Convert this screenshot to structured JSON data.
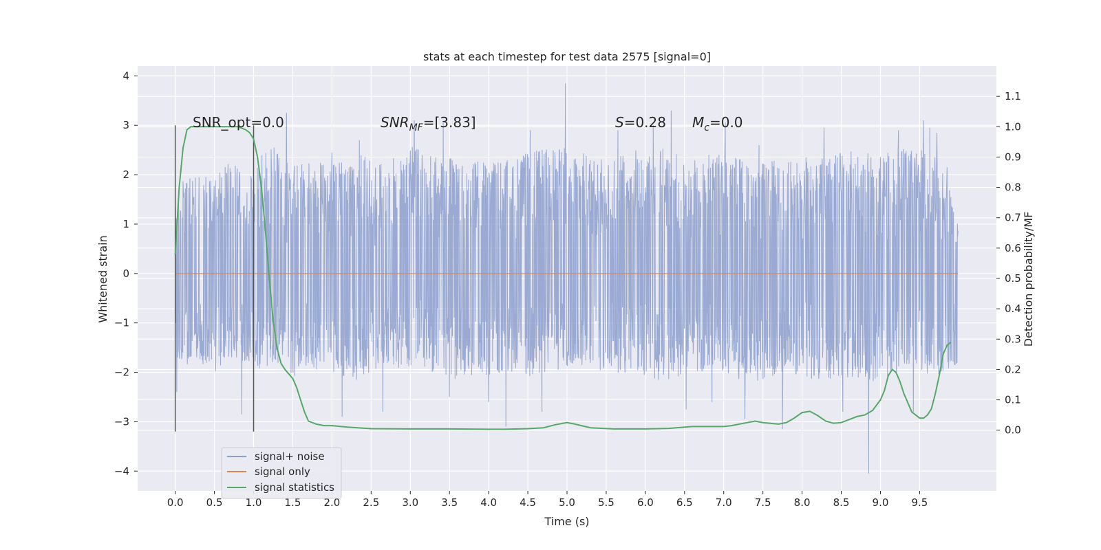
{
  "chart_data": {
    "type": "line",
    "title": "stats at each timestep for test data 2575 [signal=0]",
    "xlabel": "Time (s)",
    "ylabel": "Whitened strain",
    "ylabel_right": "Detection probability/MF",
    "xlim": [
      -0.48,
      10.48
    ],
    "ylim": [
      -4.4,
      4.2
    ],
    "ylim_right": [
      -0.2,
      1.2
    ],
    "x_ticks": [
      "0.0",
      "0.5",
      "1.0",
      "1.5",
      "2.0",
      "2.5",
      "3.0",
      "3.5",
      "4.0",
      "4.5",
      "5.0",
      "5.5",
      "6.0",
      "6.5",
      "7.0",
      "7.5",
      "8.0",
      "8.5",
      "9.0",
      "9.5"
    ],
    "y_ticks": [
      "−4",
      "−3",
      "−2",
      "−1",
      "0",
      "1",
      "2",
      "3",
      "4"
    ],
    "y_ticks_right": [
      "0.0",
      "0.1",
      "0.2",
      "0.3",
      "0.4",
      "0.5",
      "0.6",
      "0.7",
      "0.8",
      "0.9",
      "1.0",
      "1.1"
    ],
    "grid": true,
    "legend_position": "lower-left",
    "annotations": {
      "snr_opt": "SNR_opt=0.0",
      "snr_mf_base": "SNR",
      "snr_mf_sub": "MF",
      "snr_mf_value": "=[3.83]",
      "s_symbol": "S",
      "s_value": "=0.28",
      "mc_base": "M",
      "mc_sub": "c",
      "mc_value": "=0.0"
    },
    "vlines": [
      0.0,
      1.0
    ],
    "series": [
      {
        "name": "signal+ noise",
        "color": "#8c9fcc",
        "envelope_upper": [
          [
            0.0,
            1.5
          ],
          [
            0.1,
            1.9
          ],
          [
            0.3,
            2.0
          ],
          [
            0.5,
            1.9
          ],
          [
            0.7,
            2.4
          ],
          [
            0.9,
            1.9
          ],
          [
            1.1,
            2.4
          ],
          [
            1.3,
            2.6
          ],
          [
            1.5,
            2.2
          ],
          [
            1.7,
            2.4
          ],
          [
            2.0,
            2.2
          ],
          [
            2.3,
            2.5
          ],
          [
            2.6,
            2.2
          ],
          [
            3.0,
            2.6
          ],
          [
            3.4,
            2.4
          ],
          [
            3.8,
            2.3
          ],
          [
            4.2,
            2.3
          ],
          [
            4.6,
            2.5
          ],
          [
            5.0,
            2.6
          ],
          [
            5.4,
            2.3
          ],
          [
            5.8,
            2.5
          ],
          [
            6.2,
            2.6
          ],
          [
            6.6,
            2.3
          ],
          [
            7.0,
            2.5
          ],
          [
            7.4,
            2.2
          ],
          [
            7.8,
            2.4
          ],
          [
            8.2,
            2.3
          ],
          [
            8.6,
            2.5
          ],
          [
            9.0,
            2.4
          ],
          [
            9.4,
            2.6
          ],
          [
            9.8,
            2.3
          ],
          [
            9.99,
            1.0
          ]
        ],
        "envelope_lower": [
          [
            0.0,
            -1.7
          ],
          [
            0.1,
            -1.9
          ],
          [
            0.3,
            -1.8
          ],
          [
            0.5,
            -2.0
          ],
          [
            0.7,
            -1.7
          ],
          [
            0.9,
            -1.9
          ],
          [
            1.1,
            -2.0
          ],
          [
            1.3,
            -1.8
          ],
          [
            1.5,
            -2.1
          ],
          [
            1.7,
            -1.9
          ],
          [
            2.0,
            -2.0
          ],
          [
            2.3,
            -2.2
          ],
          [
            2.6,
            -2.0
          ],
          [
            3.0,
            -1.9
          ],
          [
            3.4,
            -2.1
          ],
          [
            3.8,
            -2.2
          ],
          [
            4.2,
            -2.0
          ],
          [
            4.6,
            -2.1
          ],
          [
            5.0,
            -1.9
          ],
          [
            5.4,
            -2.1
          ],
          [
            5.8,
            -2.0
          ],
          [
            6.2,
            -2.2
          ],
          [
            6.6,
            -2.0
          ],
          [
            7.0,
            -2.1
          ],
          [
            7.4,
            -2.2
          ],
          [
            7.8,
            -2.0
          ],
          [
            8.2,
            -2.2
          ],
          [
            8.6,
            -2.1
          ],
          [
            9.0,
            -2.2
          ],
          [
            9.4,
            -2.0
          ],
          [
            9.8,
            -2.1
          ],
          [
            9.99,
            -1.8
          ]
        ],
        "spikes": [
          [
            0.02,
            -2.4
          ],
          [
            0.85,
            -2.85
          ],
          [
            1.42,
            3.25
          ],
          [
            2.0,
            2.45
          ],
          [
            2.13,
            -2.9
          ],
          [
            2.35,
            2.7
          ],
          [
            2.65,
            -2.8
          ],
          [
            3.05,
            3.1
          ],
          [
            3.42,
            3.05
          ],
          [
            3.5,
            -2.5
          ],
          [
            4.0,
            -2.6
          ],
          [
            4.22,
            -3.1
          ],
          [
            4.53,
            2.9
          ],
          [
            4.68,
            -2.8
          ],
          [
            4.98,
            3.85
          ],
          [
            5.65,
            2.9
          ],
          [
            6.1,
            3.0
          ],
          [
            6.33,
            3.3
          ],
          [
            6.52,
            -2.75
          ],
          [
            6.85,
            -2.6
          ],
          [
            7.02,
            3.05
          ],
          [
            7.27,
            -2.95
          ],
          [
            7.45,
            2.6
          ],
          [
            7.75,
            -3.15
          ],
          [
            8.05,
            2.35
          ],
          [
            8.28,
            2.95
          ],
          [
            8.52,
            -2.8
          ],
          [
            8.85,
            -4.05
          ],
          [
            9.23,
            2.9
          ],
          [
            9.42,
            -2.8
          ],
          [
            9.55,
            3.1
          ],
          [
            9.63,
            2.95
          ],
          [
            9.72,
            2.85
          ],
          [
            9.85,
            2.15
          ]
        ]
      },
      {
        "name": "signal only",
        "color": "#dd8452",
        "x": [
          0.0,
          9.99
        ],
        "y": [
          0.0,
          0.0
        ]
      },
      {
        "name": "signal statistics",
        "color": "#55a868",
        "axis": "right",
        "x": [
          0.0,
          0.05,
          0.1,
          0.15,
          0.2,
          0.3,
          0.4,
          0.5,
          0.6,
          0.7,
          0.8,
          0.9,
          0.95,
          1.0,
          1.05,
          1.1,
          1.15,
          1.2,
          1.25,
          1.3,
          1.35,
          1.4,
          1.5,
          1.55,
          1.6,
          1.65,
          1.7,
          1.8,
          1.9,
          2.0,
          2.2,
          2.5,
          3.0,
          3.5,
          4.0,
          4.2,
          4.5,
          4.7,
          4.85,
          5.0,
          5.1,
          5.3,
          5.6,
          6.0,
          6.3,
          6.6,
          6.8,
          7.0,
          7.1,
          7.2,
          7.3,
          7.4,
          7.5,
          7.7,
          7.8,
          7.9,
          8.0,
          8.1,
          8.2,
          8.3,
          8.4,
          8.5,
          8.6,
          8.7,
          8.8,
          8.9,
          9.0,
          9.05,
          9.1,
          9.15,
          9.2,
          9.25,
          9.3,
          9.4,
          9.5,
          9.55,
          9.6,
          9.65,
          9.7,
          9.75,
          9.8,
          9.85,
          9.9
        ],
        "y": [
          0.58,
          0.8,
          0.93,
          0.99,
          1.0,
          1.0,
          1.0,
          1.0,
          1.0,
          1.0,
          1.0,
          0.99,
          0.98,
          0.96,
          0.9,
          0.8,
          0.66,
          0.5,
          0.36,
          0.27,
          0.22,
          0.2,
          0.17,
          0.14,
          0.1,
          0.06,
          0.03,
          0.02,
          0.015,
          0.015,
          0.01,
          0.005,
          0.004,
          0.004,
          0.003,
          0.003,
          0.005,
          0.008,
          0.018,
          0.025,
          0.02,
          0.008,
          0.004,
          0.004,
          0.006,
          0.012,
          0.012,
          0.012,
          0.015,
          0.02,
          0.025,
          0.03,
          0.025,
          0.02,
          0.025,
          0.04,
          0.058,
          0.062,
          0.048,
          0.03,
          0.023,
          0.025,
          0.035,
          0.045,
          0.05,
          0.065,
          0.1,
          0.13,
          0.18,
          0.2,
          0.19,
          0.16,
          0.12,
          0.06,
          0.04,
          0.04,
          0.05,
          0.07,
          0.12,
          0.18,
          0.25,
          0.28,
          0.29
        ]
      }
    ]
  }
}
